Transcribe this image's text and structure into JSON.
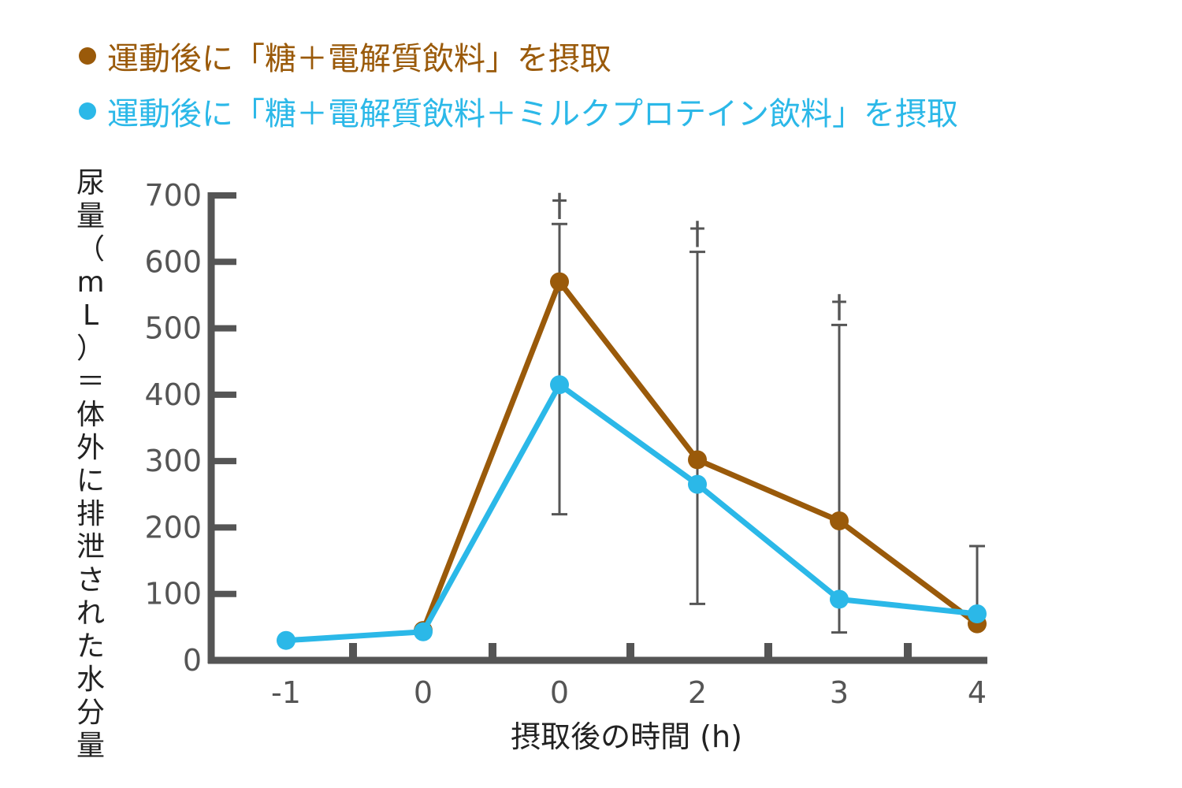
{
  "chart_data": {
    "type": "line",
    "legend_position": "top-left",
    "grid": false,
    "categories": [
      "-1",
      "0",
      "0",
      "2",
      "3",
      "4"
    ],
    "xlabel": "摂取後の時間 (h)",
    "ylabel": "尿量（mL）＝体外に排泄された水分量",
    "ylim": [
      0,
      700
    ],
    "yticks": [
      "0",
      "100",
      "200",
      "300",
      "400",
      "500",
      "600",
      "700"
    ],
    "series": [
      {
        "name": "運動後に「糖＋電解質飲料」を摂取",
        "color": "#9a5a0a",
        "values": [
          null,
          45,
          570,
          302,
          210,
          55
        ]
      },
      {
        "name": "運動後に「糖＋電解質飲料＋ミルクプロテイン飲料」を摂取",
        "color": "#2bb8e8",
        "values": [
          30,
          43,
          415,
          265,
          92,
          70
        ]
      }
    ],
    "error_bars": [
      {
        "category_index": 2,
        "low": 220,
        "high": 657
      },
      {
        "category_index": 3,
        "low": 85,
        "high": 615
      },
      {
        "category_index": 4,
        "low": 42,
        "high": 505
      },
      {
        "category_index": 5,
        "low": 50,
        "high": 172
      }
    ],
    "annotations": [
      {
        "category_index": 2,
        "text": "†"
      },
      {
        "category_index": 3,
        "text": "†"
      },
      {
        "category_index": 4,
        "text": "†"
      }
    ]
  }
}
